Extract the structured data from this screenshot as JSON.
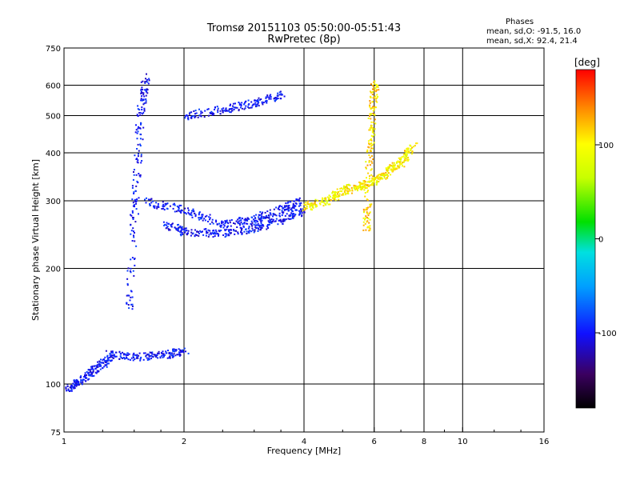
{
  "title": "Tromsø 20151103 05:50:00-05:51:43",
  "subtitle": "RwPretec (8p)",
  "stats": {
    "heading": "Phases",
    "line_o": "mean, sd,O: -91.5, 16.0",
    "line_x": "mean, sd,X:  92.4, 21.4"
  },
  "chart_data": {
    "type": "scatter",
    "xlabel": "Frequency [MHz]",
    "ylabel": "Stationary phase Virtual Height [km]",
    "xscale": "log",
    "yscale": "log",
    "xlim": [
      1,
      16
    ],
    "ylim": [
      75,
      750
    ],
    "xticks": [
      1,
      2,
      4,
      6,
      8,
      10,
      16
    ],
    "yticks": [
      75,
      100,
      200,
      300,
      400,
      500,
      600,
      750
    ],
    "xgrid": [
      2,
      4,
      6,
      8,
      10
    ],
    "ygrid": [
      100,
      200,
      300,
      400,
      500,
      600
    ],
    "grid": true,
    "colorbar": {
      "label": "[deg]",
      "range": [
        -180,
        180
      ],
      "ticks": [
        100,
        0,
        -100
      ],
      "colormap": "rainbow-black-to-red"
    },
    "points_note": "O-mode phases ~ -91.5 (blue), X-mode phases ~ 92.4 (yellow/orange)",
    "traces": [
      {
        "mode": "O",
        "phase": -100,
        "x": [
          1.0,
          1.1,
          1.2,
          1.3
        ],
        "y": [
          97,
          103,
          110,
          118
        ]
      },
      {
        "mode": "O",
        "phase": -100,
        "x": [
          1.3,
          1.5,
          1.8,
          2.0
        ],
        "y": [
          120,
          118,
          120,
          122
        ]
      },
      {
        "mode": "O",
        "phase": -100,
        "x": [
          1.45,
          1.5,
          1.55,
          1.6
        ],
        "y": [
          160,
          300,
          500,
          630
        ]
      },
      {
        "mode": "O",
        "phase": -100,
        "x": [
          1.6,
          2.0,
          2.5,
          3.0,
          3.5,
          3.9
        ],
        "y": [
          300,
          285,
          262,
          270,
          287,
          300
        ]
      },
      {
        "mode": "O",
        "phase": -100,
        "x": [
          1.8,
          2.0,
          2.5,
          3.0,
          3.5,
          4.0
        ],
        "y": [
          260,
          250,
          248,
          255,
          270,
          285
        ]
      },
      {
        "mode": "O",
        "phase": -100,
        "x": [
          2.0,
          2.5,
          3.0,
          3.5
        ],
        "y": [
          500,
          520,
          540,
          570
        ]
      },
      {
        "mode": "X",
        "phase": 100,
        "x": [
          4.0,
          4.5,
          5.0,
          5.5,
          6.0,
          6.5,
          7.0,
          7.5
        ],
        "y": [
          290,
          300,
          320,
          330,
          340,
          360,
          380,
          420
        ]
      },
      {
        "mode": "X",
        "phase": 110,
        "x": [
          5.7,
          5.8,
          5.9,
          6.0
        ],
        "y": [
          250,
          350,
          500,
          620
        ]
      }
    ]
  }
}
